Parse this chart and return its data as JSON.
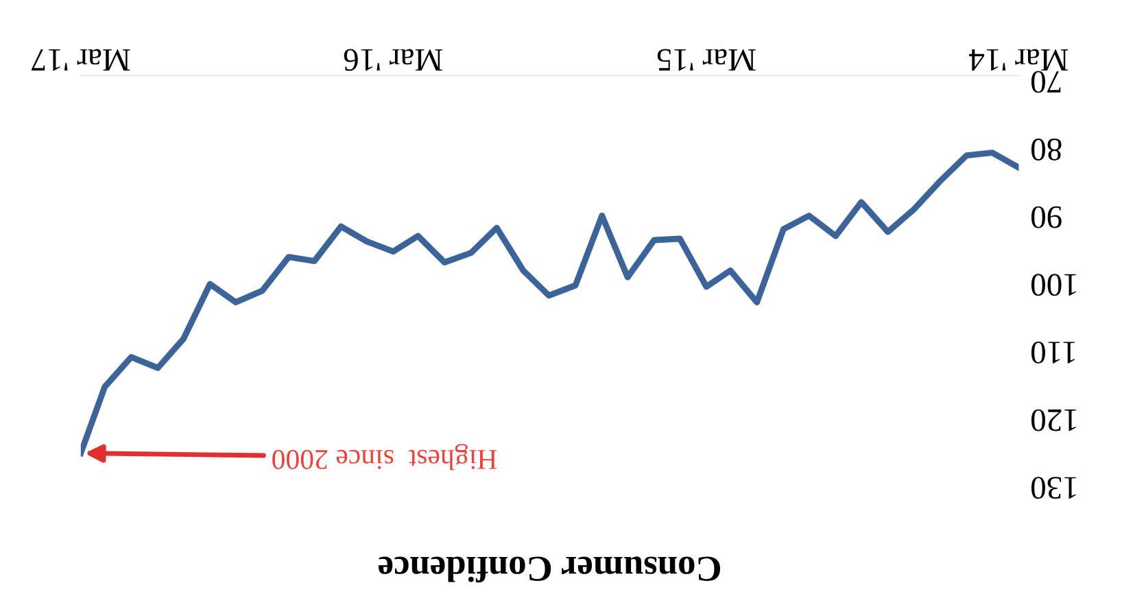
{
  "chart_data": {
    "type": "line",
    "title": "Consumer Confidence",
    "x": [
      "2014-03",
      "2014-04",
      "2014-05",
      "2014-06",
      "2014-07",
      "2014-08",
      "2014-09",
      "2014-10",
      "2014-11",
      "2014-12",
      "2015-01",
      "2015-02",
      "2015-03",
      "2015-04",
      "2015-05",
      "2015-06",
      "2015-07",
      "2015-08",
      "2015-09",
      "2015-10",
      "2015-11",
      "2015-12",
      "2016-01",
      "2016-02",
      "2016-03",
      "2016-04",
      "2016-05",
      "2016-06",
      "2016-07",
      "2016-08",
      "2016-09",
      "2016-10",
      "2016-11",
      "2016-12",
      "2017-01",
      "2017-02",
      "2017-03"
    ],
    "series": [
      {
        "color": "#3d6499",
        "values": [
          83.6,
          81.4,
          81.8,
          85.6,
          89.7,
          93.1,
          88.7,
          93.7,
          90.7,
          92.7,
          103.5,
          98.8,
          101.2,
          94.1,
          94.3,
          99.8,
          90.7,
          101.0,
          102.5,
          98.8,
          92.5,
          96.2,
          97.6,
          93.7,
          96.0,
          94.5,
          92.3,
          97.4,
          96.8,
          101.8,
          103.5,
          100.8,
          108.9,
          113.2,
          111.6,
          116.0,
          125.8
        ]
      }
    ],
    "xlim": [
      "2017-03",
      "2014-03"
    ],
    "xticks": [
      {
        "value": "2014-03",
        "label": "Mar '14"
      },
      {
        "value": "2015-03",
        "label": "Mar '15"
      },
      {
        "value": "2016-03",
        "label": "Mar '16"
      },
      {
        "value": "2017-03",
        "label": "Mar '17"
      }
    ],
    "ylim": [
      130,
      70
    ],
    "yticks": [
      70,
      80,
      90,
      100,
      110,
      120,
      130
    ],
    "grid": false,
    "legend": false,
    "marker": "none",
    "line_style": "solid",
    "annotations": [
      {
        "text": "Highest  since 2000",
        "x": "2017-03",
        "y": 125.8
      }
    ]
  }
}
